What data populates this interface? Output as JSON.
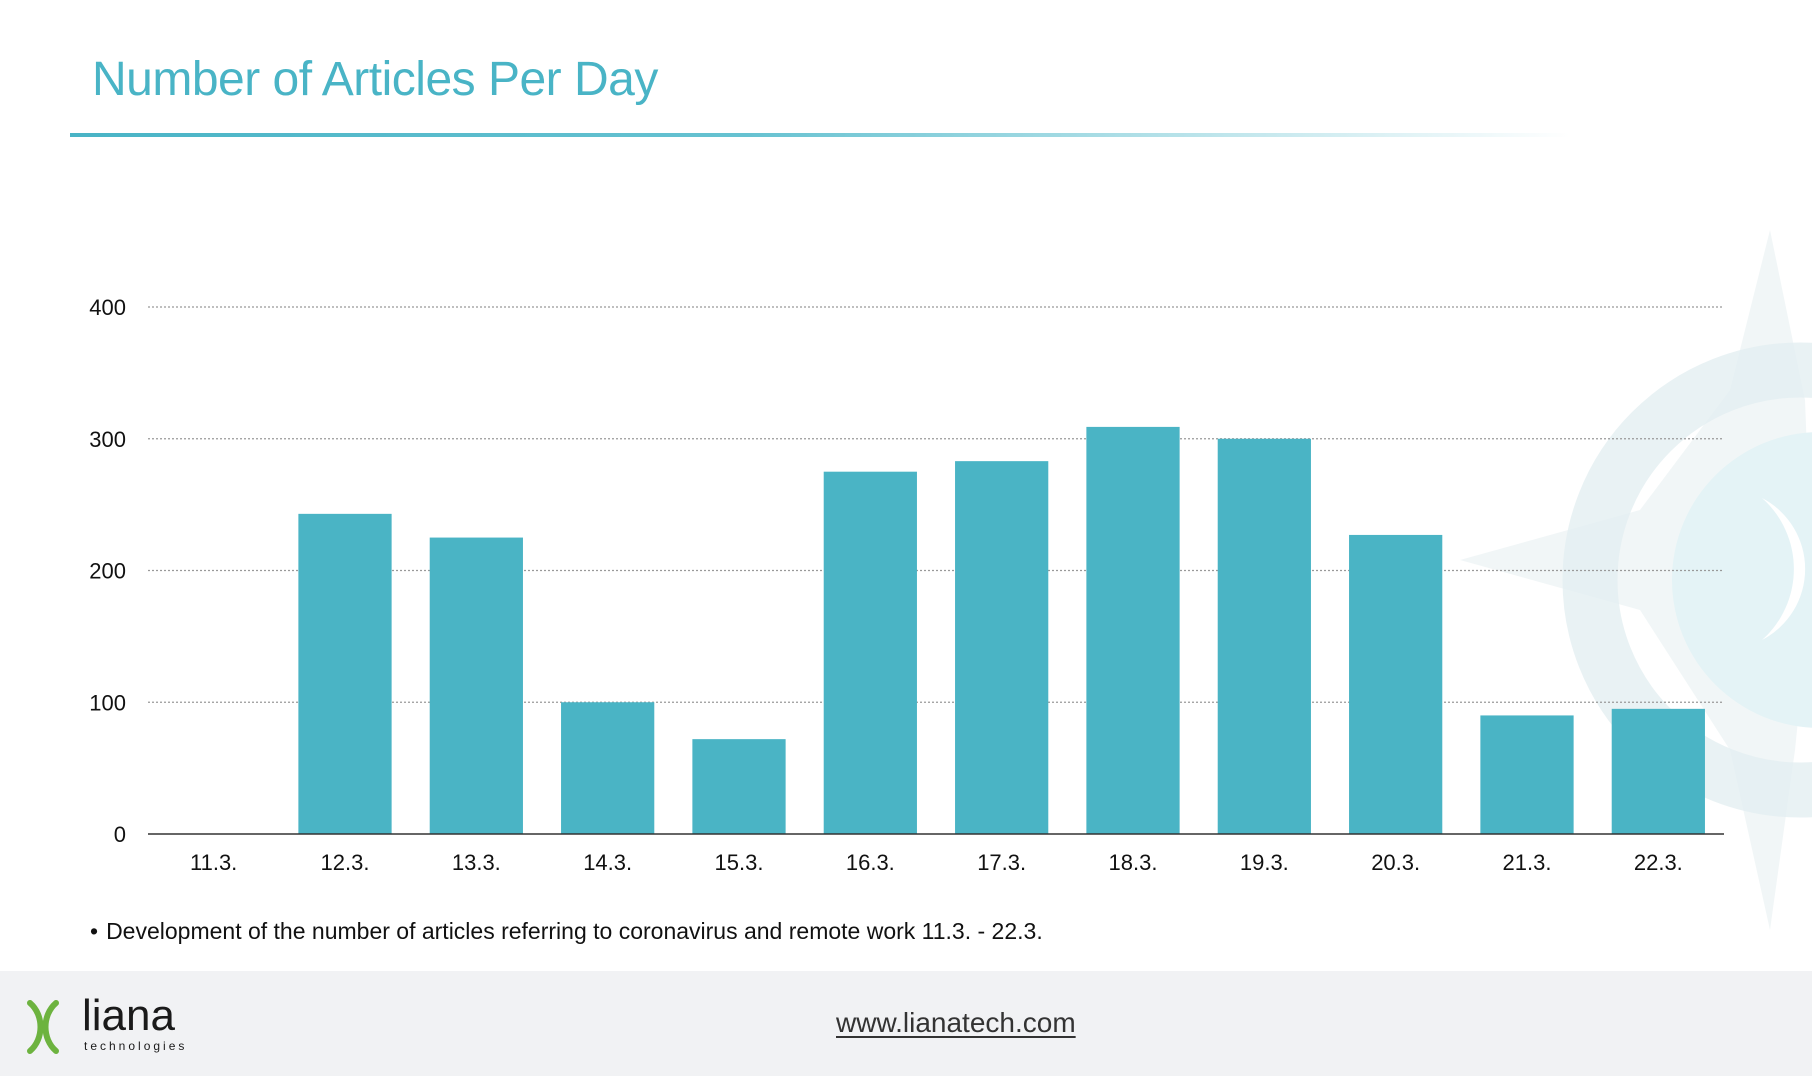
{
  "slide": {
    "title": "Number of Articles Per Day",
    "caption_bullet": "•",
    "caption": "Development of the number of articles referring to coronavirus and remote work 11.3. - 22.3."
  },
  "footer": {
    "brand": "liana",
    "brand_sub": "technologies",
    "link": "www.lianatech.com"
  },
  "colors": {
    "accent": "#49B4C6",
    "bar": "#4AB4C5",
    "gridline": "#999999",
    "footer_bg": "#f1f2f4",
    "logo_green": "#6DB33F"
  },
  "chart_data": {
    "type": "bar",
    "title": "Number of Articles Per Day",
    "xlabel": "",
    "ylabel": "",
    "categories": [
      "11.3.",
      "12.3.",
      "13.3.",
      "14.3.",
      "15.3.",
      "16.3.",
      "17.3.",
      "18.3.",
      "19.3.",
      "20.3.",
      "21.3.",
      "22.3."
    ],
    "values": [
      0,
      243,
      225,
      100,
      72,
      275,
      283,
      309,
      300,
      227,
      90,
      95
    ],
    "ylim": [
      0,
      400
    ],
    "yticks": [
      0,
      100,
      200,
      300,
      400
    ],
    "ytick_labels": [
      "0",
      "100",
      "200",
      "300",
      "400"
    ],
    "grid": true,
    "legend": "none"
  }
}
